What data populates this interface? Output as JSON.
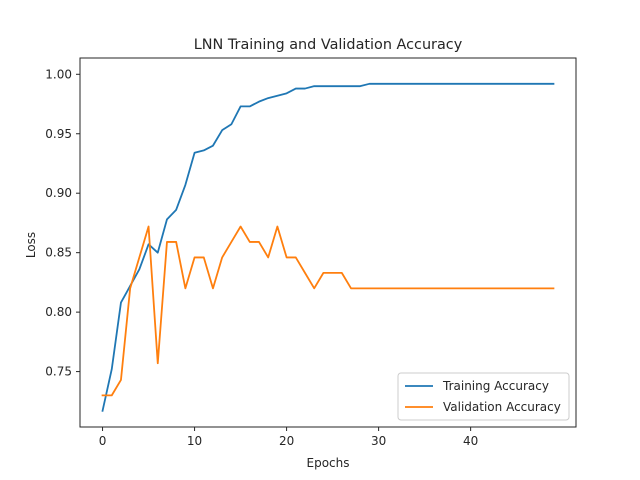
{
  "chart_data": {
    "type": "line",
    "title": "LNN Training and Validation Accuracy",
    "xlabel": "Epochs",
    "ylabel": "Loss",
    "xlim": [
      -2.45,
      51.45
    ],
    "ylim": [
      0.7034,
      1.0137
    ],
    "x_ticks": [
      0,
      10,
      20,
      30,
      40
    ],
    "y_ticks": [
      0.75,
      0.8,
      0.85,
      0.9,
      0.95,
      1.0
    ],
    "y_tick_labels": [
      "0.75",
      "0.80",
      "0.85",
      "0.90",
      "0.95",
      "1.00"
    ],
    "grid": false,
    "legend_position": "lower-right",
    "x": [
      0,
      1,
      2,
      3,
      4,
      5,
      6,
      7,
      8,
      9,
      10,
      11,
      12,
      13,
      14,
      15,
      16,
      17,
      18,
      19,
      20,
      21,
      22,
      23,
      24,
      25,
      26,
      27,
      28,
      29,
      30,
      31,
      32,
      33,
      34,
      35,
      36,
      37,
      38,
      39,
      40,
      41,
      42,
      43,
      44,
      45,
      46,
      47,
      48,
      49
    ],
    "series": [
      {
        "name": "Training Accuracy",
        "color": "#1f77b4",
        "values": [
          0.717,
          0.752,
          0.808,
          0.822,
          0.836,
          0.857,
          0.85,
          0.878,
          0.886,
          0.907,
          0.934,
          0.936,
          0.94,
          0.953,
          0.958,
          0.973,
          0.973,
          0.977,
          0.98,
          0.982,
          0.984,
          0.988,
          0.988,
          0.99,
          0.99,
          0.99,
          0.99,
          0.99,
          0.99,
          0.992,
          0.992,
          0.992,
          0.992,
          0.992,
          0.992,
          0.992,
          0.992,
          0.992,
          0.992,
          0.992,
          0.992,
          0.992,
          0.992,
          0.992,
          0.992,
          0.992,
          0.992,
          0.992,
          0.992,
          0.992
        ]
      },
      {
        "name": "Validation Accuracy",
        "color": "#ff7f0e",
        "values": [
          0.73,
          0.73,
          0.743,
          0.82,
          0.846,
          0.872,
          0.757,
          0.859,
          0.859,
          0.82,
          0.846,
          0.846,
          0.82,
          0.846,
          0.859,
          0.872,
          0.859,
          0.859,
          0.846,
          0.872,
          0.846,
          0.846,
          0.833,
          0.82,
          0.833,
          0.833,
          0.833,
          0.82,
          0.82,
          0.82,
          0.82,
          0.82,
          0.82,
          0.82,
          0.82,
          0.82,
          0.82,
          0.82,
          0.82,
          0.82,
          0.82,
          0.82,
          0.82,
          0.82,
          0.82,
          0.82,
          0.82,
          0.82,
          0.82,
          0.82
        ]
      }
    ]
  }
}
